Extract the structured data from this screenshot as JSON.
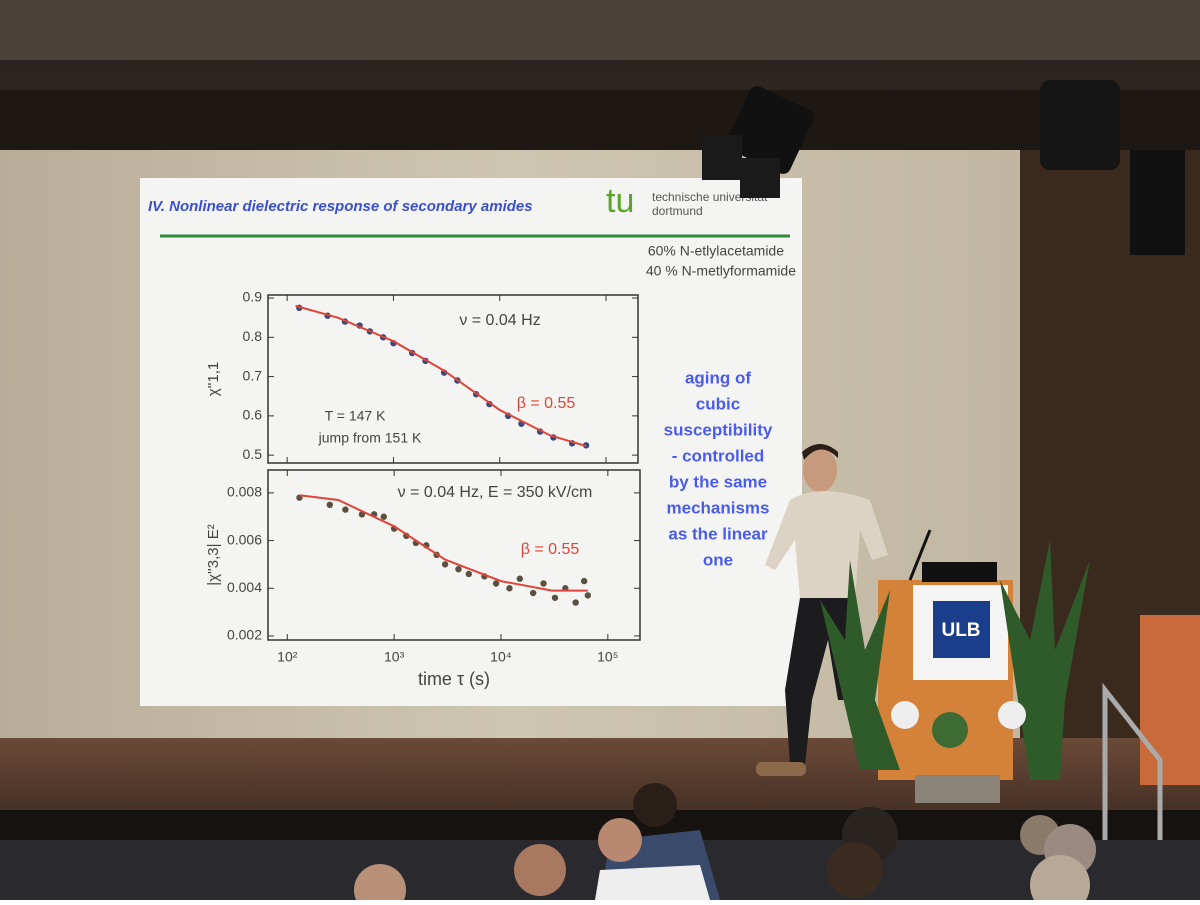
{
  "slide": {
    "title": "IV. Nonlinear dielectric response of secondary amides",
    "logo": "tu",
    "logo_text": [
      "technische universität",
      "dortmund"
    ],
    "sample": [
      "60% N-etlylacetamide",
      "40 % N-metlyformamide"
    ],
    "comment": [
      "aging of",
      "cubic",
      "susceptibility",
      "- controlled",
      "by the same",
      "mechanisms",
      "as the linear",
      "one"
    ]
  },
  "podium": "ULB",
  "chart_data": [
    {
      "type": "scatter",
      "ylabel": "χ''1,1",
      "xscale": "log",
      "xlim": [
        66,
        200000
      ],
      "ylim": [
        0.48,
        0.9077
      ],
      "yticks": [
        0.5,
        0.6,
        0.7,
        0.8,
        0.9
      ],
      "annotations": [
        "ν = 0.04 Hz",
        "T = 147 K",
        "jump from 151 K"
      ],
      "fit_label": "β = 0.55",
      "point_color": "#3a4a7a",
      "fit_color": "#e0453a",
      "points": {
        "x": [
          130,
          240,
          350,
          480,
          600,
          800,
          1000,
          1500,
          2000,
          3000,
          4000,
          6000,
          8000,
          12000,
          16000,
          24000,
          32000,
          48000,
          65000
        ],
        "y": [
          0.875,
          0.855,
          0.84,
          0.83,
          0.815,
          0.8,
          0.785,
          0.76,
          0.74,
          0.71,
          0.69,
          0.655,
          0.63,
          0.6,
          0.58,
          0.56,
          0.545,
          0.53,
          0.525
        ]
      },
      "fit": {
        "x": [
          120,
          300,
          1000,
          3000,
          10000,
          30000,
          65000
        ],
        "y": [
          0.88,
          0.85,
          0.79,
          0.715,
          0.615,
          0.55,
          0.523
        ]
      }
    },
    {
      "type": "scatter",
      "ylabel": "|χ''3,3| E²",
      "xlabel": "time τ (s)",
      "xscale": "log",
      "xlim": [
        66,
        200000
      ],
      "ylim": [
        0.00183,
        0.00896
      ],
      "yticks": [
        0.002,
        0.004,
        0.006,
        0.008
      ],
      "xticks": [
        {
          "value": 100,
          "label": "10²"
        },
        {
          "value": 1000,
          "label": "10³"
        },
        {
          "value": 10000,
          "label": "10⁴"
        },
        {
          "value": 100000,
          "label": "10⁵"
        }
      ],
      "annotations": [
        "ν = 0.04 Hz,  E = 350 kV/cm"
      ],
      "fit_label": "β = 0.55",
      "point_color": "#5a5040",
      "fit_color": "#e0453a",
      "points": {
        "x": [
          130,
          250,
          350,
          500,
          650,
          800,
          1000,
          1300,
          1600,
          2000,
          2500,
          3000,
          4000,
          5000,
          7000,
          9000,
          12000,
          15000,
          20000,
          25000,
          32000,
          40000,
          50000,
          60000,
          65000
        ],
        "y": [
          0.0078,
          0.0075,
          0.0073,
          0.0071,
          0.0071,
          0.007,
          0.0065,
          0.0062,
          0.0059,
          0.0058,
          0.0054,
          0.005,
          0.0048,
          0.0046,
          0.0045,
          0.0042,
          0.004,
          0.0044,
          0.0038,
          0.0042,
          0.0036,
          0.004,
          0.0034,
          0.0043,
          0.0037
        ]
      },
      "fit": {
        "x": [
          130,
          300,
          1000,
          3000,
          10000,
          30000,
          65000
        ],
        "y": [
          0.0079,
          0.0077,
          0.0066,
          0.0052,
          0.0043,
          0.0039,
          0.0039
        ]
      }
    }
  ]
}
